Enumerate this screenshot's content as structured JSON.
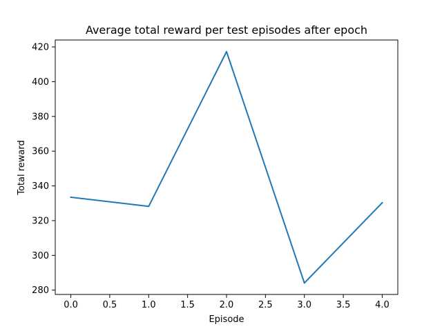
{
  "chart_data": {
    "type": "line",
    "title": "Average total reward per test episodes after epoch",
    "xlabel": "Episode",
    "ylabel": "Total reward",
    "x": [
      0,
      1,
      2,
      3,
      4
    ],
    "series": [
      {
        "values": [
          333.5,
          328.2,
          417.3,
          284.1,
          330.3
        ],
        "color": "#1f77b4"
      }
    ],
    "xlim": [
      -0.2,
      4.2
    ],
    "ylim": [
      277.5,
      424.0
    ],
    "xticks": [
      "0.0",
      "0.5",
      "1.0",
      "1.5",
      "2.0",
      "2.5",
      "3.0",
      "3.5",
      "4.0"
    ],
    "yticks": [
      "280",
      "300",
      "320",
      "340",
      "360",
      "380",
      "400",
      "420"
    ],
    "grid": false,
    "legend": "none"
  }
}
